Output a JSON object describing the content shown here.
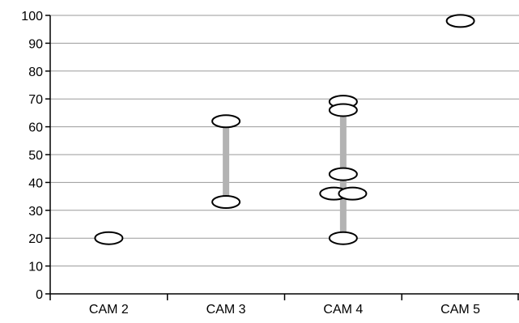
{
  "chart_data": {
    "type": "scatter",
    "title": "",
    "xlabel": "",
    "ylabel": "",
    "categories": [
      "CAM 2",
      "CAM 3",
      "CAM 4",
      "CAM 5"
    ],
    "ylim": [
      0,
      100
    ],
    "yticks": [
      0,
      10,
      20,
      30,
      40,
      50,
      60,
      70,
      80,
      90,
      100
    ],
    "grid": true,
    "legend": "none",
    "points": [
      {
        "category": "CAM 2",
        "y": 20,
        "offset": 0
      },
      {
        "category": "CAM 3",
        "y": 62,
        "offset": 0
      },
      {
        "category": "CAM 3",
        "y": 33,
        "offset": 0
      },
      {
        "category": "CAM 4",
        "y": 69,
        "offset": 0
      },
      {
        "category": "CAM 4",
        "y": 66,
        "offset": 0
      },
      {
        "category": "CAM 4",
        "y": 43,
        "offset": 0
      },
      {
        "category": "CAM 4",
        "y": 36,
        "offset": -0.08
      },
      {
        "category": "CAM 4",
        "y": 36,
        "offset": 0.08
      },
      {
        "category": "CAM 4",
        "y": 20,
        "offset": 0
      },
      {
        "category": "CAM 5",
        "y": 98,
        "offset": 0
      }
    ],
    "ranges": [
      {
        "category": "CAM 3",
        "low": 33,
        "high": 62
      },
      {
        "category": "CAM 4",
        "low": 20,
        "high": 66
      }
    ],
    "colors": {
      "grid": "#9a9a9a",
      "axis": "#000000",
      "range_bar": "#b3b3b3",
      "marker_fill": "#ffffff",
      "marker_stroke": "#000000"
    }
  }
}
